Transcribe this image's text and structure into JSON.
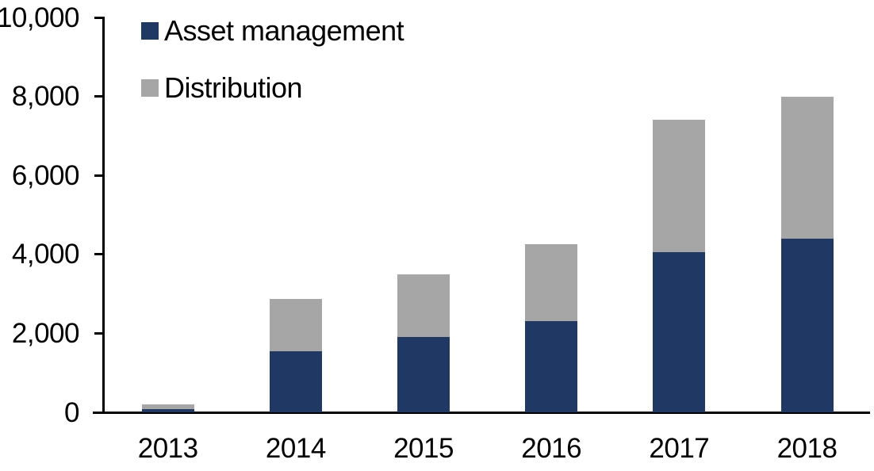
{
  "chart_data": {
    "type": "bar",
    "stacked": true,
    "categories": [
      "2013",
      "2014",
      "2015",
      "2016",
      "2017",
      "2018"
    ],
    "series": [
      {
        "name": "Asset management",
        "color": "#1F3864",
        "values": [
          90,
          1550,
          1900,
          2300,
          4050,
          4400
        ]
      },
      {
        "name": "Distribution",
        "color": "#A6A6A6",
        "values": [
          110,
          1330,
          1600,
          1950,
          3350,
          3600
        ]
      }
    ],
    "ylim": [
      0,
      10000
    ],
    "y_tick_values": [
      0,
      2000,
      4000,
      6000,
      8000,
      10000
    ],
    "y_tick_labels": [
      "0",
      "2,000",
      "4,000",
      "6,000",
      "8,000",
      "10,000"
    ],
    "legend_position": "top-left",
    "grid": false,
    "axis_color": "#000000",
    "background_color": "#FFFFFF"
  }
}
